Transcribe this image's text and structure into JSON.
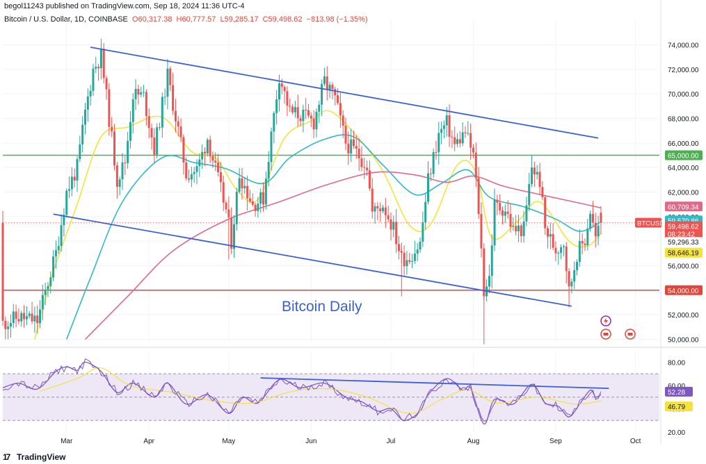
{
  "header": {
    "published": "begol11243 published on TradingView.com, Sep 18, 2024 11:36 UTC-4",
    "symbol": "Bitcoin / U.S. Dollar, 1D, COINBASE",
    "open": "O60,317.38",
    "high": "H60,777.57",
    "low": "L59,285.17",
    "close": "C59,498.62",
    "change": "−813.98 (−1.35%)"
  },
  "footer": {
    "brand": "TradingView",
    "logo_icon": "tradingview-logo-icon"
  },
  "colors": {
    "up": "#26a69a",
    "down": "#ef5350",
    "ema_fast": "#f5e23b",
    "ema_mid": "#2fb8c8",
    "ema_slow": "#e0698a",
    "trendline": "#3a5fd9",
    "support_red": "#e0463c",
    "resistance_green": "#4caf50",
    "rsi": "#7e57c2",
    "rsi_ma": "#f5e23b",
    "rsi_band": "#ede7f6"
  },
  "chart_data": [
    {
      "type": "candlestick",
      "annotation": "Bitcoin Daily",
      "symbol_tag": "BTCUSD",
      "countdown": "08:23:42",
      "y_ticks": [
        50000,
        52000,
        54000,
        56000,
        58000,
        60000,
        62000,
        64000,
        66000,
        68000,
        70000,
        72000,
        74000
      ],
      "y_tick_labels": [
        "50,000.00",
        "52,000.00",
        "54,000.00",
        "56,000.00",
        "58,000.00",
        "60,000.00",
        "62,000.00",
        "64,000.00",
        "66,000.00",
        "68,000.00",
        "70,000.00",
        "72,000.00",
        "74,000.00"
      ],
      "ylim": [
        49800,
        75500
      ],
      "x_ticks": [
        {
          "label": "Mar",
          "date": "2024-03-01"
        },
        {
          "label": "Apr",
          "date": "2024-04-01"
        },
        {
          "label": "May",
          "date": "2024-05-01"
        },
        {
          "label": "Jun",
          "date": "2024-06-01"
        },
        {
          "label": "Jul",
          "date": "2024-07-01"
        },
        {
          "label": "Aug",
          "date": "2024-08-01"
        },
        {
          "label": "Sep",
          "date": "2024-09-01"
        },
        {
          "label": "Oct",
          "date": "2024-10-01"
        }
      ],
      "xlim": [
        "2024-02-06",
        "2024-10-10"
      ],
      "horizontal_levels": [
        {
          "value": 65000,
          "label": "65,000.00",
          "color": "#4caf50"
        },
        {
          "value": 54000,
          "label": "54,000.00",
          "color": "#e0463c"
        }
      ],
      "price_labels": [
        {
          "value": 60709.34,
          "label": "60,709.34",
          "color": "#e0698a",
          "text_color": "#ffffff"
        },
        {
          "value": 59570.86,
          "label": "59,570.86",
          "color": "#2fb8c8",
          "text_color": "#ffffff"
        },
        {
          "value": 59498.62,
          "label": "59,498.62",
          "color": "#ef5350",
          "text_color": "#ffffff"
        },
        {
          "value": 59296.33,
          "label": "59,296.33",
          "color": "#ffffff",
          "text_color": "#131722"
        },
        {
          "value": 58646.19,
          "label": "58,646.19",
          "color": "#f5e23b",
          "text_color": "#131722"
        }
      ],
      "trendlines": [
        {
          "name": "upper-channel",
          "points": [
            [
              "2024-03-10",
              73800
            ],
            [
              "2024-09-17",
              66400
            ]
          ]
        },
        {
          "name": "lower-channel",
          "points": [
            [
              "2024-02-25",
              60200
            ],
            [
              "2024-09-07",
              52700
            ]
          ]
        }
      ],
      "closes": [
        {
          "date": "2024-02-06",
          "value": 51300
        },
        {
          "date": "2024-02-12",
          "value": 51800
        },
        {
          "date": "2024-02-19",
          "value": 51500
        },
        {
          "date": "2024-02-26",
          "value": 57000
        },
        {
          "date": "2024-03-01",
          "value": 62000
        },
        {
          "date": "2024-03-05",
          "value": 64000
        },
        {
          "date": "2024-03-08",
          "value": 68500
        },
        {
          "date": "2024-03-11",
          "value": 72000
        },
        {
          "date": "2024-03-14",
          "value": 73100
        },
        {
          "date": "2024-03-17",
          "value": 68000
        },
        {
          "date": "2024-03-20",
          "value": 63000
        },
        {
          "date": "2024-03-23",
          "value": 64500
        },
        {
          "date": "2024-03-26",
          "value": 70000
        },
        {
          "date": "2024-03-30",
          "value": 69800
        },
        {
          "date": "2024-04-03",
          "value": 65500
        },
        {
          "date": "2024-04-08",
          "value": 71500
        },
        {
          "date": "2024-04-12",
          "value": 67000
        },
        {
          "date": "2024-04-15",
          "value": 63500
        },
        {
          "date": "2024-04-19",
          "value": 63800
        },
        {
          "date": "2024-04-23",
          "value": 66400
        },
        {
          "date": "2024-04-27",
          "value": 63000
        },
        {
          "date": "2024-04-30",
          "value": 60500
        },
        {
          "date": "2024-05-02",
          "value": 58000
        },
        {
          "date": "2024-05-05",
          "value": 63500
        },
        {
          "date": "2024-05-10",
          "value": 61000
        },
        {
          "date": "2024-05-14",
          "value": 61500
        },
        {
          "date": "2024-05-16",
          "value": 65000
        },
        {
          "date": "2024-05-20",
          "value": 71500
        },
        {
          "date": "2024-05-24",
          "value": 68500
        },
        {
          "date": "2024-05-28",
          "value": 68300
        },
        {
          "date": "2024-06-02",
          "value": 67700
        },
        {
          "date": "2024-06-06",
          "value": 71000
        },
        {
          "date": "2024-06-10",
          "value": 69600
        },
        {
          "date": "2024-06-14",
          "value": 66000
        },
        {
          "date": "2024-06-18",
          "value": 65200
        },
        {
          "date": "2024-06-22",
          "value": 64200
        },
        {
          "date": "2024-06-24",
          "value": 60300
        },
        {
          "date": "2024-06-28",
          "value": 61000
        },
        {
          "date": "2024-07-02",
          "value": 59000
        },
        {
          "date": "2024-07-05",
          "value": 56600
        },
        {
          "date": "2024-07-08",
          "value": 56700
        },
        {
          "date": "2024-07-12",
          "value": 57800
        },
        {
          "date": "2024-07-15",
          "value": 63000
        },
        {
          "date": "2024-07-19",
          "value": 66700
        },
        {
          "date": "2024-07-22",
          "value": 67600
        },
        {
          "date": "2024-07-25",
          "value": 65800
        },
        {
          "date": "2024-07-29",
          "value": 66900
        },
        {
          "date": "2024-08-01",
          "value": 65000
        },
        {
          "date": "2024-08-03",
          "value": 60500
        },
        {
          "date": "2024-08-05",
          "value": 54000
        },
        {
          "date": "2024-08-07",
          "value": 55100
        },
        {
          "date": "2024-08-09",
          "value": 60900
        },
        {
          "date": "2024-08-13",
          "value": 60600
        },
        {
          "date": "2024-08-16",
          "value": 58900
        },
        {
          "date": "2024-08-20",
          "value": 59000
        },
        {
          "date": "2024-08-23",
          "value": 64100
        },
        {
          "date": "2024-08-26",
          "value": 62900
        },
        {
          "date": "2024-08-28",
          "value": 59000
        },
        {
          "date": "2024-09-01",
          "value": 57300
        },
        {
          "date": "2024-09-04",
          "value": 58000
        },
        {
          "date": "2024-09-06",
          "value": 53900
        },
        {
          "date": "2024-09-09",
          "value": 57000
        },
        {
          "date": "2024-09-12",
          "value": 58100
        },
        {
          "date": "2024-09-14",
          "value": 60500
        },
        {
          "date": "2024-09-16",
          "value": 58200
        },
        {
          "date": "2024-09-18",
          "value": 59498.62
        }
      ],
      "series": [
        {
          "key": "ema_fast",
          "color": "#f5e23b",
          "points": [
            [
              "2024-02-18",
              50000
            ],
            [
              "2024-02-25",
              55500
            ],
            [
              "2024-03-05",
              61000
            ],
            [
              "2024-03-14",
              66500
            ],
            [
              "2024-03-24",
              67300
            ],
            [
              "2024-04-06",
              68100
            ],
            [
              "2024-04-17",
              65300
            ],
            [
              "2024-04-26",
              64800
            ],
            [
              "2024-05-04",
              62200
            ],
            [
              "2024-05-12",
              61400
            ],
            [
              "2024-05-22",
              66400
            ],
            [
              "2024-06-01",
              67800
            ],
            [
              "2024-06-08",
              68600
            ],
            [
              "2024-06-18",
              66600
            ],
            [
              "2024-06-28",
              63700
            ],
            [
              "2024-07-08",
              59300
            ],
            [
              "2024-07-16",
              59400
            ],
            [
              "2024-07-26",
              64200
            ],
            [
              "2024-08-02",
              63600
            ],
            [
              "2024-08-08",
              58300
            ],
            [
              "2024-08-18",
              59700
            ],
            [
              "2024-08-26",
              61200
            ],
            [
              "2024-09-06",
              58000
            ],
            [
              "2024-09-13",
              57600
            ],
            [
              "2024-09-18",
              58646.19
            ]
          ]
        },
        {
          "key": "ema_mid",
          "color": "#2fb8c8",
          "points": [
            [
              "2024-03-01",
              50000
            ],
            [
              "2024-03-10",
              55000
            ],
            [
              "2024-03-22",
              61200
            ],
            [
              "2024-04-06",
              64800
            ],
            [
              "2024-04-18",
              64400
            ],
            [
              "2024-04-30",
              63900
            ],
            [
              "2024-05-14",
              62700
            ],
            [
              "2024-05-24",
              64800
            ],
            [
              "2024-06-06",
              66300
            ],
            [
              "2024-06-17",
              66500
            ],
            [
              "2024-06-28",
              64200
            ],
            [
              "2024-07-10",
              61800
            ],
            [
              "2024-07-20",
              62700
            ],
            [
              "2024-07-30",
              63800
            ],
            [
              "2024-08-07",
              61600
            ],
            [
              "2024-08-20",
              60800
            ],
            [
              "2024-09-01",
              59800
            ],
            [
              "2024-09-10",
              58800
            ],
            [
              "2024-09-18",
              59570.86
            ]
          ]
        },
        {
          "key": "ema_slow",
          "color": "#e0698a",
          "points": [
            [
              "2024-03-08",
              50000
            ],
            [
              "2024-03-24",
              53500
            ],
            [
              "2024-04-10",
              57200
            ],
            [
              "2024-04-30",
              59700
            ],
            [
              "2024-05-20",
              61200
            ],
            [
              "2024-06-07",
              62600
            ],
            [
              "2024-06-25",
              63600
            ],
            [
              "2024-07-10",
              63400
            ],
            [
              "2024-07-22",
              62800
            ],
            [
              "2024-08-01",
              63300
            ],
            [
              "2024-08-12",
              62500
            ],
            [
              "2024-08-26",
              61800
            ],
            [
              "2024-09-10",
              61100
            ],
            [
              "2024-09-18",
              60709.34
            ]
          ]
        }
      ]
    },
    {
      "type": "line",
      "y_ticks": [
        20,
        40,
        60,
        80
      ],
      "y_tick_labels": [
        "20.00",
        "40.00",
        "60.00",
        "80.00"
      ],
      "ylim": [
        20,
        88
      ],
      "bands": [
        30,
        50,
        70
      ],
      "value_labels": [
        {
          "value": 52.28,
          "label": "52.28",
          "color": "#7e57c2",
          "text_color": "#ffffff"
        },
        {
          "value": 46.79,
          "label": "46.79",
          "color": "#f5e23b",
          "text_color": "#131722"
        }
      ],
      "trendline": {
        "points": [
          [
            "2024-05-13",
            66.5
          ],
          [
            "2024-09-21",
            57.5
          ]
        ]
      },
      "series": [
        {
          "key": "rsi",
          "color": "#7e57c2",
          "points": [
            [
              "2024-02-06",
              58
            ],
            [
              "2024-02-12",
              62
            ],
            [
              "2024-02-19",
              57
            ],
            [
              "2024-02-26",
              72
            ],
            [
              "2024-03-01",
              76
            ],
            [
              "2024-03-05",
              73
            ],
            [
              "2024-03-08",
              80
            ],
            [
              "2024-03-14",
              72
            ],
            [
              "2024-03-20",
              54
            ],
            [
              "2024-03-26",
              62
            ],
            [
              "2024-04-03",
              50
            ],
            [
              "2024-04-08",
              62
            ],
            [
              "2024-04-15",
              44
            ],
            [
              "2024-04-23",
              52
            ],
            [
              "2024-05-01",
              36
            ],
            [
              "2024-05-06",
              50
            ],
            [
              "2024-05-12",
              45
            ],
            [
              "2024-05-20",
              65
            ],
            [
              "2024-05-28",
              58
            ],
            [
              "2024-06-06",
              62
            ],
            [
              "2024-06-14",
              50
            ],
            [
              "2024-06-20",
              46
            ],
            [
              "2024-06-26",
              38
            ],
            [
              "2024-07-01",
              40
            ],
            [
              "2024-07-06",
              30
            ],
            [
              "2024-07-12",
              38
            ],
            [
              "2024-07-15",
              52
            ],
            [
              "2024-07-22",
              66
            ],
            [
              "2024-07-28",
              56
            ],
            [
              "2024-07-31",
              58
            ],
            [
              "2024-08-05",
              27
            ],
            [
              "2024-08-09",
              48
            ],
            [
              "2024-08-16",
              44
            ],
            [
              "2024-08-23",
              61
            ],
            [
              "2024-08-28",
              45
            ],
            [
              "2024-09-02",
              42
            ],
            [
              "2024-09-06",
              33
            ],
            [
              "2024-09-10",
              44
            ],
            [
              "2024-09-14",
              56
            ],
            [
              "2024-09-16",
              50
            ],
            [
              "2024-09-18",
              52.28
            ]
          ]
        },
        {
          "key": "rsi_ma",
          "color": "#f5e23b",
          "points": [
            [
              "2024-02-20",
              55
            ],
            [
              "2024-03-05",
              66
            ],
            [
              "2024-03-14",
              75
            ],
            [
              "2024-03-25",
              60
            ],
            [
              "2024-04-10",
              54
            ],
            [
              "2024-04-25",
              47
            ],
            [
              "2024-05-10",
              45
            ],
            [
              "2024-05-25",
              55
            ],
            [
              "2024-06-08",
              57
            ],
            [
              "2024-06-22",
              50
            ],
            [
              "2024-07-08",
              36
            ],
            [
              "2024-07-20",
              48
            ],
            [
              "2024-07-30",
              56
            ],
            [
              "2024-08-10",
              45
            ],
            [
              "2024-08-25",
              50
            ],
            [
              "2024-09-08",
              44
            ],
            [
              "2024-09-18",
              46.79
            ]
          ]
        }
      ]
    }
  ]
}
